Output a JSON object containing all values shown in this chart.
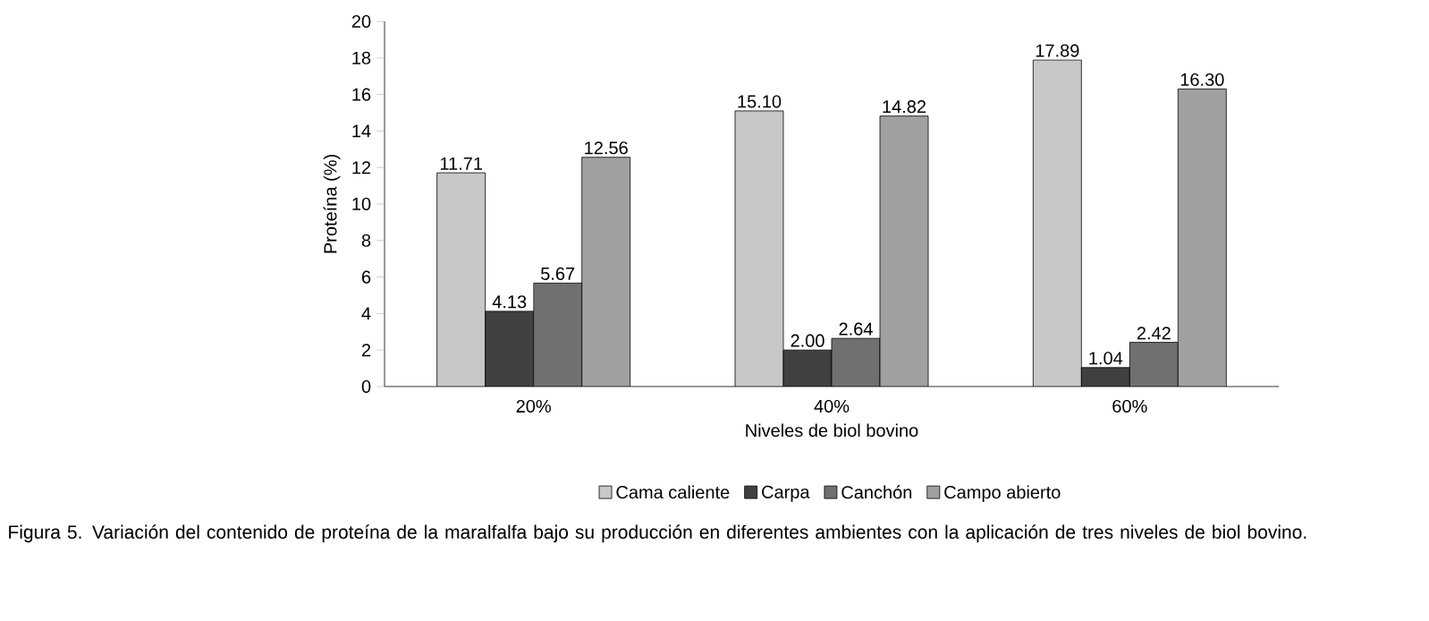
{
  "chart_data": {
    "type": "bar",
    "xlabel": "Niveles de biol bovino",
    "ylabel": "Proteína (%)",
    "categories": [
      "20%",
      "40%",
      "60%"
    ],
    "series": [
      {
        "name": "Cama caliente",
        "color": "#c8c8c8",
        "values": [
          11.71,
          15.1,
          17.89
        ],
        "value_labels": [
          "11.71",
          "15.10",
          "17.89"
        ]
      },
      {
        "name": "Carpa",
        "color": "#404040",
        "values": [
          4.13,
          2.0,
          1.04
        ],
        "value_labels": [
          "4.13",
          "2.00",
          "1.04"
        ]
      },
      {
        "name": "Canchón",
        "color": "#707070",
        "values": [
          5.67,
          2.64,
          2.42
        ],
        "value_labels": [
          "5.67",
          "2.64",
          "2.42"
        ]
      },
      {
        "name": "Campo abierto",
        "color": "#a0a0a0",
        "values": [
          12.56,
          14.82,
          16.3
        ],
        "value_labels": [
          "12.56",
          "14.82",
          "16.30"
        ]
      }
    ],
    "ylim": [
      0,
      20
    ],
    "yticks": [
      0,
      2,
      4,
      6,
      8,
      10,
      12,
      14,
      16,
      18,
      20
    ],
    "grid": false,
    "legend": "bottom",
    "annotations": [
      "Figura 5. Variación del contenido de proteína de la maralfalfa bajo su producción en diferentes ambientes con la aplicación de tres niveles de biol bovino."
    ]
  }
}
